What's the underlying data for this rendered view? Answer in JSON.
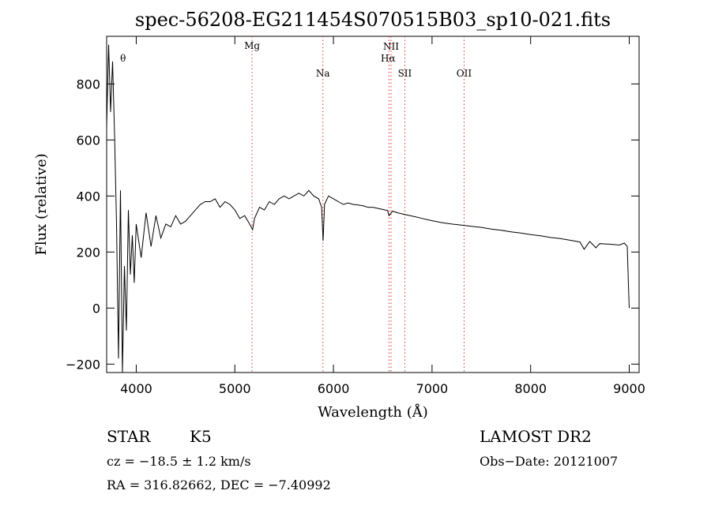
{
  "chart_data": {
    "type": "line",
    "title": "spec-56208-EG211454S070515B03_sp10-021.fits",
    "xlabel": "Wavelength (Å)",
    "ylabel": "Flux (relative)",
    "xlim": [
      3700,
      9100
    ],
    "ylim": [
      -230,
      970
    ],
    "x_ticks": [
      4000,
      5000,
      6000,
      7000,
      8000,
      9000
    ],
    "y_ticks": [
      -200,
      0,
      200,
      400,
      600,
      800
    ],
    "grid": false,
    "series": [
      {
        "x": [
          3700,
          3720,
          3740,
          3760,
          3780,
          3800,
          3820,
          3840,
          3860,
          3880,
          3900,
          3920,
          3940,
          3960,
          3980,
          4000,
          4050,
          4100,
          4150,
          4200,
          4250,
          4300,
          4350,
          4400,
          4450,
          4500,
          4550,
          4600,
          4650,
          4700,
          4750,
          4800,
          4850,
          4900,
          4950,
          5000,
          5050,
          5100,
          5150,
          5180,
          5200,
          5250,
          5300,
          5350,
          5400,
          5450,
          5500,
          5550,
          5600,
          5650,
          5700,
          5750,
          5800,
          5850,
          5880,
          5895,
          5910,
          5950,
          6000,
          6050,
          6100,
          6150,
          6200,
          6250,
          6300,
          6350,
          6400,
          6450,
          6500,
          6550,
          6563,
          6600,
          6650,
          6700,
          6750,
          6800,
          6850,
          6900,
          6950,
          7000,
          7100,
          7200,
          7300,
          7400,
          7500,
          7600,
          7700,
          7800,
          7900,
          8000,
          8100,
          8200,
          8300,
          8400,
          8500,
          8542,
          8600,
          8662,
          8700,
          8800,
          8900,
          8950,
          8980,
          8990,
          9000
        ],
        "y": [
          650,
          940,
          700,
          880,
          620,
          300,
          -180,
          420,
          -230,
          150,
          -80,
          350,
          120,
          260,
          90,
          300,
          180,
          340,
          220,
          330,
          250,
          300,
          290,
          330,
          300,
          310,
          330,
          350,
          370,
          380,
          380,
          390,
          360,
          380,
          370,
          350,
          320,
          330,
          300,
          280,
          320,
          360,
          350,
          380,
          370,
          390,
          400,
          390,
          400,
          410,
          400,
          420,
          400,
          390,
          360,
          240,
          370,
          400,
          390,
          380,
          370,
          375,
          370,
          368,
          365,
          360,
          360,
          356,
          352,
          348,
          330,
          346,
          340,
          336,
          332,
          328,
          324,
          320,
          316,
          312,
          305,
          300,
          296,
          292,
          288,
          282,
          278,
          272,
          268,
          262,
          258,
          252,
          248,
          242,
          236,
          210,
          238,
          215,
          230,
          228,
          225,
          232,
          220,
          100,
          0
        ]
      }
    ],
    "lines": [
      {
        "label": "Mg",
        "x": 5175
      },
      {
        "label": "Na",
        "x": 5893
      },
      {
        "label": "NII",
        "x": 6584
      },
      {
        "label": "Hα",
        "x": 6563
      },
      {
        "label": "SII",
        "x": 6724
      },
      {
        "label": "OII",
        "x": 7325
      },
      {
        "label": "θ",
        "x": 3770
      }
    ]
  },
  "info": {
    "class": "STAR",
    "subclass": "K5",
    "survey": "LAMOST DR2",
    "cz": "cz = −18.5 ± 1.2 km/s",
    "obs_date": "Obs−Date: 20121007",
    "coords": "RA = 316.82662, DEC =  −7.40992"
  }
}
